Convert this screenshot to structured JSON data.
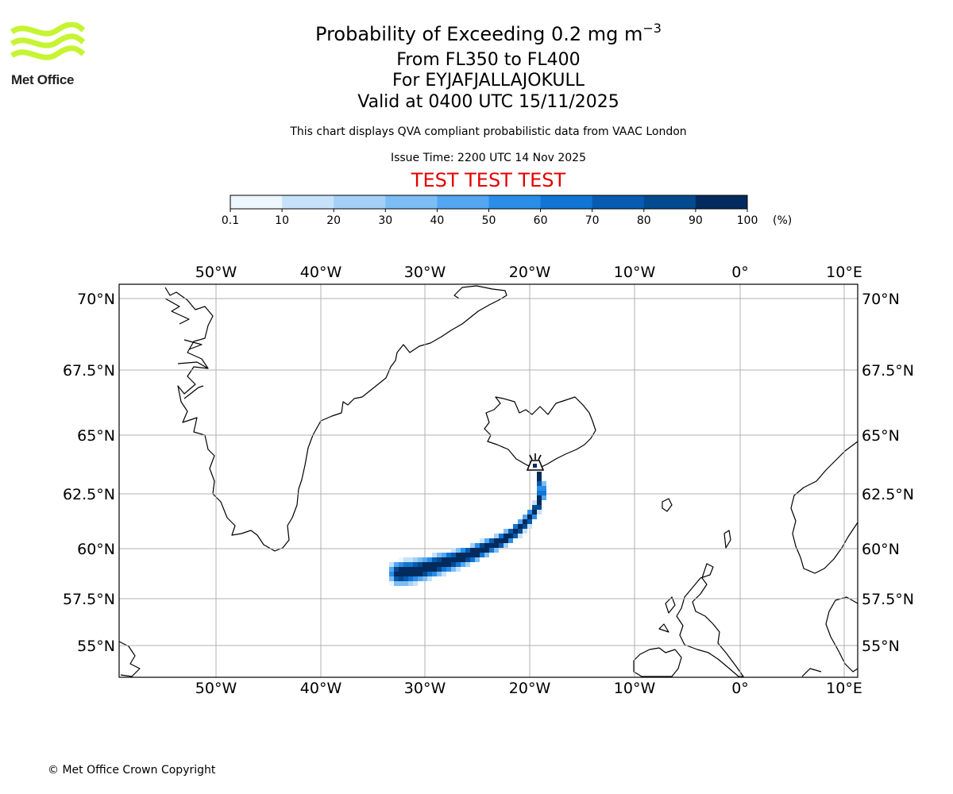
{
  "header": {
    "title_main": "Probability of Exceeding 0.2 mg m",
    "title_exp": "−3",
    "flight_levels": "From FL350 to FL400",
    "volcano": "For EYJAFJALLAJOKULL",
    "valid": "Valid at 0400 UTC 15/11/2025",
    "note": "This chart displays QVA compliant probabilistic data from VAAC London",
    "issue": "Issue Time: 2200 UTC 14 Nov 2025",
    "test_banner": "TEST TEST TEST"
  },
  "logo": {
    "text": "Met Office",
    "color": "#c6f432"
  },
  "colorbar": {
    "labels": [
      "0.1",
      "10",
      "20",
      "30",
      "40",
      "50",
      "60",
      "70",
      "80",
      "90",
      "100"
    ],
    "unit": "(%)",
    "colors": [
      "#eef6fe",
      "#c6e2fb",
      "#a4d0f8",
      "#7dbdf6",
      "#53a7f2",
      "#2a8ee9",
      "#1075d5",
      "#075bb0",
      "#044a8f",
      "#032b5e"
    ]
  },
  "map": {
    "lon_labels": [
      "50°W",
      "40°W",
      "30°W",
      "20°W",
      "10°W",
      "0°",
      "10°E"
    ],
    "lat_labels": [
      "70°N",
      "67.5°N",
      "65°N",
      "62.5°N",
      "60°N",
      "57.5°N",
      "55°N"
    ],
    "extent": {
      "lon_min": -59.2,
      "lon_max": 11.2,
      "lat_min": 53.7,
      "lat_max": 70.6
    },
    "plume_color": "#032b5e",
    "volcano_marker": "volcano-icon"
  },
  "footer": {
    "copyright": "© Met Office Crown Copyright"
  }
}
